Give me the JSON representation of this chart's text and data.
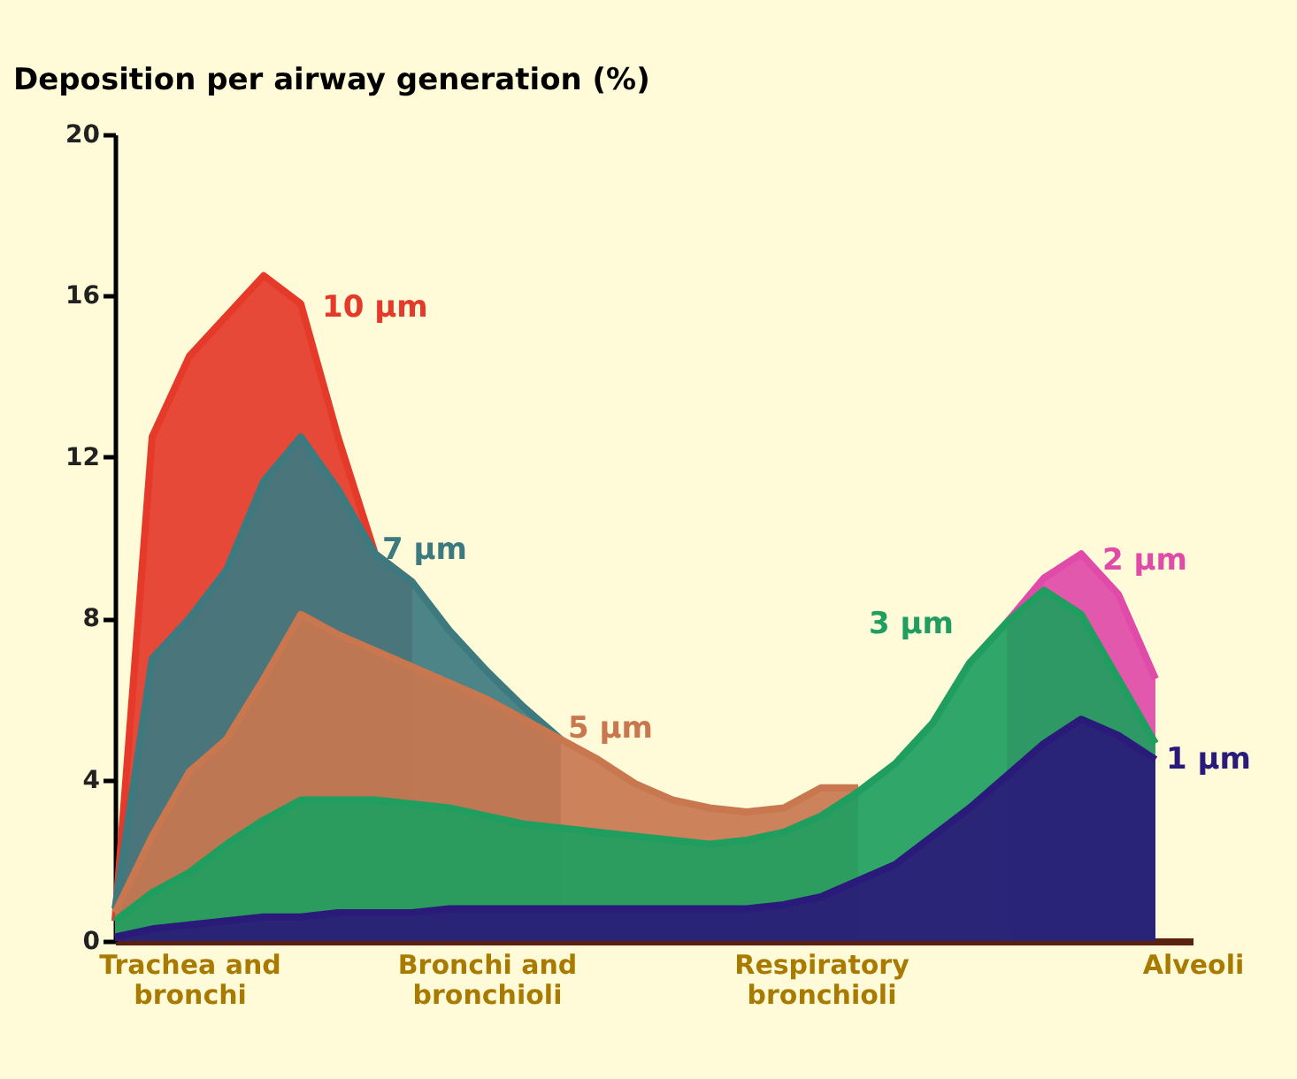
{
  "chart_data": {
    "type": "area",
    "ylabel": "Deposition per airway generation (%)",
    "categories": [
      null,
      null,
      "Trachea and bronchi",
      null,
      null,
      null,
      null,
      null,
      null,
      null,
      "Bronchi and bronchioli",
      null,
      null,
      null,
      null,
      null,
      null,
      null,
      null,
      "Respiratory bronchioli",
      null,
      null,
      null,
      null,
      null,
      null,
      null,
      null,
      null,
      "Alveoli"
    ],
    "ylim": [
      0,
      20
    ],
    "yticks": [
      0,
      4,
      8,
      12,
      16,
      20
    ],
    "grid": false,
    "series": [
      {
        "name": "10 µm",
        "color": "#e53a2a",
        "values": [
          0.5,
          12.5,
          14.5,
          15.5,
          16.5,
          15.8,
          12.5,
          9.6,
          8.9,
          null,
          null,
          null,
          null,
          null,
          null,
          null,
          null,
          null,
          null,
          null,
          null,
          null,
          null,
          null,
          null,
          null,
          null,
          null,
          null,
          null
        ]
      },
      {
        "name": "7 µm",
        "color": "#3d7a80",
        "values": [
          0.8,
          7,
          8,
          9.2,
          11.4,
          12.5,
          11.2,
          9.6,
          8.9,
          7.7,
          6.7,
          5.8,
          5.0,
          null,
          null,
          null,
          null,
          null,
          null,
          null,
          null,
          null,
          null,
          null,
          null,
          null,
          null,
          null,
          null,
          null
        ]
      },
      {
        "name": "5 µm",
        "color": "#c8774f",
        "values": [
          0.7,
          2.6,
          4.2,
          5.0,
          6.5,
          8.1,
          7.6,
          7.2,
          6.8,
          6.4,
          6.0,
          5.5,
          5.0,
          4.5,
          3.9,
          3.5,
          3.3,
          3.2,
          3.3,
          3.8,
          3.8,
          null,
          null,
          null,
          null,
          null,
          null,
          null,
          null,
          null
        ]
      },
      {
        "name": "2 µm",
        "color": "#e04aa8",
        "values": [
          null,
          null,
          null,
          null,
          null,
          null,
          null,
          null,
          null,
          null,
          null,
          null,
          null,
          null,
          null,
          null,
          null,
          null,
          null,
          null,
          null,
          null,
          null,
          null,
          7.9,
          9.0,
          9.6,
          8.6,
          6.5,
          null
        ]
      },
      {
        "name": "3 µm",
        "color": "#1f9e5f",
        "values": [
          0.5,
          1.2,
          1.7,
          2.4,
          3.0,
          3.5,
          3.5,
          3.5,
          3.4,
          3.3,
          3.1,
          2.9,
          2.8,
          2.7,
          2.6,
          2.5,
          2.4,
          2.5,
          2.7,
          3.1,
          3.7,
          4.4,
          5.4,
          6.9,
          7.9,
          8.7,
          8.1,
          6.5,
          4.9,
          null
        ]
      },
      {
        "name": "1 µm",
        "color": "#2a1a7a",
        "values": [
          0.1,
          0.3,
          0.4,
          0.5,
          0.6,
          0.6,
          0.7,
          0.7,
          0.7,
          0.8,
          0.8,
          0.8,
          0.8,
          0.8,
          0.8,
          0.8,
          0.8,
          0.8,
          0.9,
          1.1,
          1.5,
          1.9,
          2.6,
          3.3,
          4.1,
          4.9,
          5.5,
          5.1,
          4.5,
          null
        ]
      }
    ]
  }
}
